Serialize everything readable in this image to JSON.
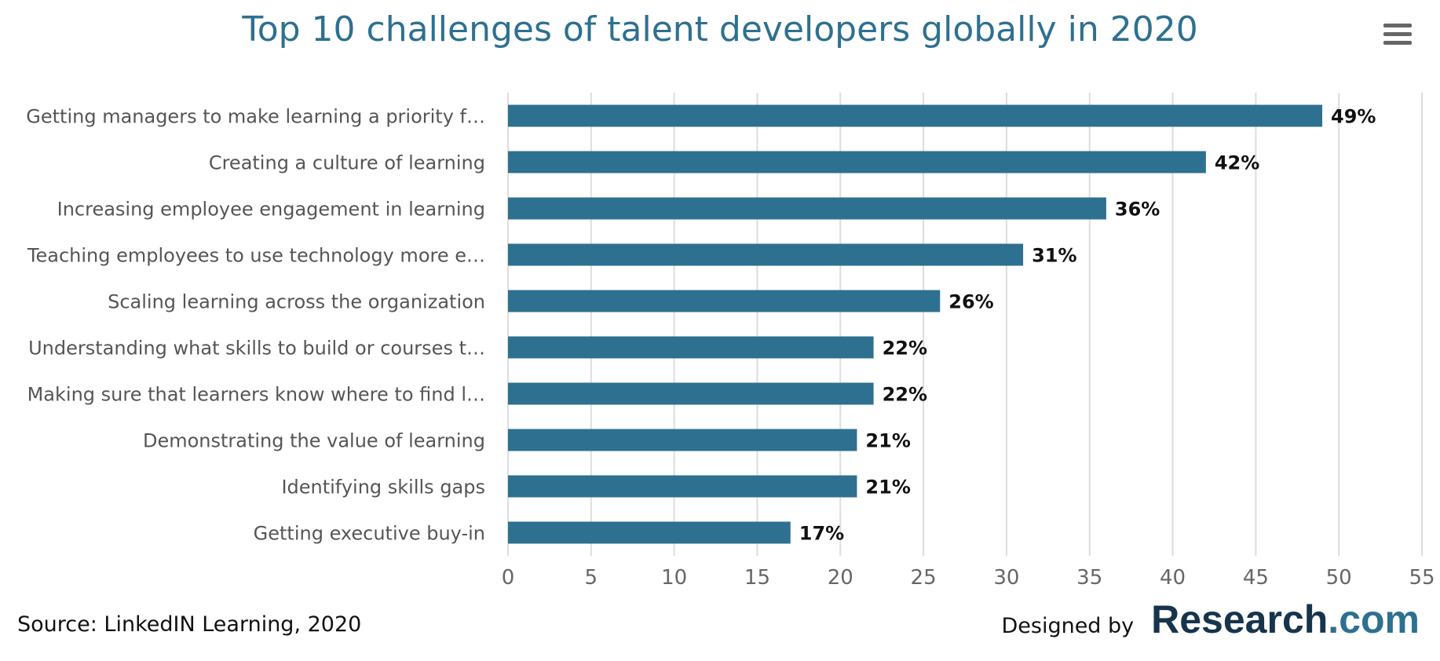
{
  "colors": {
    "title": "#2e7090",
    "bar": "#2e7090",
    "grid": "#dddddd",
    "category_label": "#555555",
    "tick_label": "#666666",
    "data_label": "#111111",
    "brand_dark": "#17344c",
    "brand_accent": "#2e7090"
  },
  "footer": {
    "source": "Source: LinkedIN Learning, 2020",
    "designed_by": "Designed by",
    "brand_main": "Research",
    "brand_tld": ".com"
  },
  "menu": {
    "icon": "hamburger-menu-icon"
  },
  "chart_data": {
    "type": "bar",
    "orientation": "horizontal",
    "title": "Top 10 challenges of talent developers globally in 2020",
    "xlabel": "",
    "ylabel": "",
    "categories": [
      "Getting managers to make learning a priority f…",
      "Creating a culture of learning",
      "Increasing employee engagement in learning",
      "Teaching employees to use technology more e…",
      "Scaling learning across the organization",
      "Understanding what skills to build or courses t…",
      "Making sure that learners know where to find l…",
      "Demonstrating the value of learning",
      "Identifying skills gaps",
      "Getting executive buy-in"
    ],
    "values": [
      49,
      42,
      36,
      31,
      26,
      22,
      22,
      21,
      21,
      17
    ],
    "data_labels": [
      "49%",
      "42%",
      "36%",
      "31%",
      "26%",
      "22%",
      "22%",
      "21%",
      "21%",
      "17%"
    ],
    "xlim": [
      0,
      55
    ],
    "xticks": [
      0,
      5,
      10,
      15,
      20,
      25,
      30,
      35,
      40,
      45,
      50,
      55
    ],
    "grid": true,
    "legend": false
  }
}
